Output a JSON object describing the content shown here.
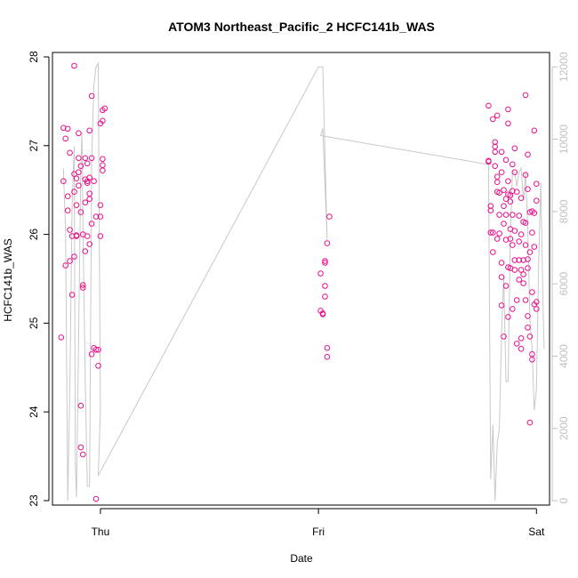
{
  "chart_data": {
    "type": "scatter",
    "title": "ATOM3 Northeast_Pacific_2 HCFC141b_WAS",
    "xlabel": "Date",
    "ylabel": "HCFC141b_WAS",
    "xlim": [
      -0.22,
      2.06
    ],
    "ylim": [
      22.95,
      28.05
    ],
    "y2lim": [
      -120,
      12400
    ],
    "x_ticks": [
      {
        "v": 0,
        "label": "Thu"
      },
      {
        "v": 1,
        "label": "Fri"
      },
      {
        "v": 2,
        "label": "Sat"
      }
    ],
    "y_ticks": [
      23,
      24,
      25,
      26,
      27,
      28
    ],
    "y2_ticks": [
      0,
      2000,
      4000,
      6000,
      8000,
      10000,
      12000
    ],
    "colors": {
      "points": "#e8128c",
      "altitude_line": "#c8c8c8",
      "axes": "#000000",
      "right_axis": "#c0c0c0"
    },
    "series": [
      {
        "kind": "points",
        "values": [
          [
            -0.18,
            24.84
          ],
          [
            -0.17,
            27.2
          ],
          [
            -0.17,
            26.6
          ],
          [
            -0.16,
            27.08
          ],
          [
            -0.16,
            25.65
          ],
          [
            -0.15,
            27.19
          ],
          [
            -0.15,
            26.43
          ],
          [
            -0.15,
            26.27
          ],
          [
            -0.14,
            26.92
          ],
          [
            -0.14,
            26.05
          ],
          [
            -0.14,
            25.7
          ],
          [
            -0.13,
            25.98
          ],
          [
            -0.13,
            25.32
          ],
          [
            -0.12,
            26.48
          ],
          [
            -0.12,
            26.68
          ],
          [
            -0.12,
            25.75
          ],
          [
            -0.11,
            25.99
          ],
          [
            -0.11,
            26.63
          ],
          [
            -0.11,
            26.33
          ],
          [
            -0.11,
            25.98
          ],
          [
            -0.1,
            27.14
          ],
          [
            -0.1,
            26.7
          ],
          [
            -0.1,
            26.55
          ],
          [
            -0.1,
            26.86
          ],
          [
            -0.09,
            26.77
          ],
          [
            -0.09,
            26.25
          ],
          [
            -0.09,
            24.07
          ],
          [
            -0.09,
            23.6
          ],
          [
            -0.08,
            23.52
          ],
          [
            -0.08,
            25.43
          ],
          [
            -0.08,
            25.4
          ],
          [
            -0.08,
            26.0
          ],
          [
            -0.07,
            26.62
          ],
          [
            -0.07,
            26.36
          ],
          [
            -0.07,
            25.81
          ],
          [
            -0.07,
            26.86
          ],
          [
            -0.06,
            26.58
          ],
          [
            -0.06,
            26.8
          ],
          [
            -0.06,
            26.6
          ],
          [
            -0.06,
            25.98
          ],
          [
            -0.05,
            26.4
          ],
          [
            -0.05,
            27.17
          ],
          [
            -0.05,
            26.64
          ],
          [
            -0.05,
            26.46
          ],
          [
            -0.05,
            25.89
          ],
          [
            -0.04,
            26.86
          ],
          [
            -0.04,
            27.56
          ],
          [
            -0.04,
            26.12
          ],
          [
            -0.04,
            24.65
          ],
          [
            -0.03,
            24.72
          ],
          [
            -0.03,
            26.6
          ],
          [
            -0.02,
            24.7
          ],
          [
            -0.02,
            26.2
          ],
          [
            -0.02,
            23.02
          ],
          [
            -0.01,
            24.7
          ],
          [
            -0.01,
            24.52
          ],
          [
            0.0,
            26.33
          ],
          [
            0.0,
            25.98
          ],
          [
            0.0,
            27.25
          ],
          [
            0.0,
            26.2
          ],
          [
            0.01,
            26.85
          ],
          [
            0.01,
            26.78
          ],
          [
            0.01,
            26.72
          ],
          [
            0.01,
            27.28
          ],
          [
            0.01,
            27.4
          ],
          [
            0.02,
            27.42
          ],
          [
            -0.12,
            27.9
          ],
          [
            1.01,
            25.56
          ],
          [
            1.01,
            25.14
          ],
          [
            1.02,
            25.1
          ],
          [
            1.02,
            25.11
          ],
          [
            1.03,
            25.7
          ],
          [
            1.03,
            25.68
          ],
          [
            1.03,
            25.42
          ],
          [
            1.03,
            25.3
          ],
          [
            1.04,
            24.62
          ],
          [
            1.04,
            24.72
          ],
          [
            1.04,
            25.9
          ],
          [
            1.05,
            26.2
          ],
          [
            1.78,
            27.45
          ],
          [
            1.78,
            26.83
          ],
          [
            1.78,
            26.82
          ],
          [
            1.79,
            26.02
          ],
          [
            1.79,
            26.32
          ],
          [
            1.79,
            26.27
          ],
          [
            1.8,
            25.8
          ],
          [
            1.8,
            26.02
          ],
          [
            1.8,
            27.3
          ],
          [
            1.81,
            26.77
          ],
          [
            1.81,
            26.99
          ],
          [
            1.81,
            26.93
          ],
          [
            1.81,
            27.04
          ],
          [
            1.82,
            26.65
          ],
          [
            1.82,
            26.59
          ],
          [
            1.82,
            26.48
          ],
          [
            1.82,
            25.95
          ],
          [
            1.82,
            27.34
          ],
          [
            1.83,
            26.22
          ],
          [
            1.83,
            26.47
          ],
          [
            1.83,
            26.01
          ],
          [
            1.84,
            26.7
          ],
          [
            1.84,
            26.93
          ],
          [
            1.84,
            25.68
          ],
          [
            1.84,
            25.52
          ],
          [
            1.84,
            25.2
          ],
          [
            1.85,
            26.12
          ],
          [
            1.85,
            26.32
          ],
          [
            1.85,
            26.5
          ],
          [
            1.85,
            24.85
          ],
          [
            1.86,
            26.22
          ],
          [
            1.86,
            26.4
          ],
          [
            1.86,
            26.84
          ],
          [
            1.86,
            25.94
          ],
          [
            1.86,
            25.42
          ],
          [
            1.87,
            27.25
          ],
          [
            1.87,
            27.41
          ],
          [
            1.87,
            26.6
          ],
          [
            1.87,
            26.45
          ],
          [
            1.87,
            25.63
          ],
          [
            1.87,
            25.07
          ],
          [
            1.88,
            26.37
          ],
          [
            1.88,
            26.44
          ],
          [
            1.88,
            25.95
          ],
          [
            1.88,
            26.06
          ],
          [
            1.88,
            25.62
          ],
          [
            1.89,
            25.16
          ],
          [
            1.89,
            26.79
          ],
          [
            1.89,
            26.49
          ],
          [
            1.89,
            26.22
          ],
          [
            1.89,
            25.88
          ],
          [
            1.9,
            26.97
          ],
          [
            1.9,
            26.7
          ],
          [
            1.9,
            25.6
          ],
          [
            1.9,
            25.71
          ],
          [
            1.9,
            26.04
          ],
          [
            1.91,
            25.26
          ],
          [
            1.91,
            26.48
          ],
          [
            1.91,
            24.77
          ],
          [
            1.92,
            26.21
          ],
          [
            1.92,
            25.49
          ],
          [
            1.92,
            25.92
          ],
          [
            1.92,
            25.71
          ],
          [
            1.93,
            24.83
          ],
          [
            1.93,
            24.71
          ],
          [
            1.93,
            26.0
          ],
          [
            1.93,
            25.6
          ],
          [
            1.93,
            26.41
          ],
          [
            1.94,
            25.71
          ],
          [
            1.94,
            25.55
          ],
          [
            1.94,
            26.14
          ],
          [
            1.94,
            25.45
          ],
          [
            1.95,
            26.13
          ],
          [
            1.95,
            27.57
          ],
          [
            1.95,
            25.26
          ],
          [
            1.95,
            26.67
          ],
          [
            1.95,
            25.88
          ],
          [
            1.96,
            26.51
          ],
          [
            1.96,
            25.72
          ],
          [
            1.96,
            26.9
          ],
          [
            1.96,
            25.62
          ],
          [
            1.96,
            25.08
          ],
          [
            1.96,
            24.95
          ],
          [
            1.97,
            24.85
          ],
          [
            1.97,
            25.8
          ],
          [
            1.97,
            23.88
          ],
          [
            1.97,
            26.25
          ],
          [
            1.98,
            24.65
          ],
          [
            1.98,
            24.59
          ],
          [
            1.98,
            26.26
          ],
          [
            1.98,
            26.02
          ],
          [
            1.98,
            25.35
          ],
          [
            1.99,
            26.24
          ],
          [
            1.99,
            25.86
          ],
          [
            1.99,
            27.17
          ],
          [
            1.99,
            25.21
          ],
          [
            2.0,
            25.16
          ],
          [
            2.0,
            26.57
          ],
          [
            2.0,
            26.38
          ],
          [
            2.0,
            25.24
          ]
        ]
      },
      {
        "kind": "altitude-line",
        "axis": "right",
        "values": [
          [
            -0.17,
            9200
          ],
          [
            -0.16,
            7500
          ],
          [
            -0.15,
            0
          ],
          [
            -0.14,
            3200
          ],
          [
            -0.13,
            8200
          ],
          [
            -0.12,
            9800
          ],
          [
            -0.115,
            1000
          ],
          [
            -0.11,
            100
          ],
          [
            -0.1,
            4500
          ],
          [
            -0.09,
            9200
          ],
          [
            -0.085,
            10200
          ],
          [
            -0.08,
            7600
          ],
          [
            -0.07,
            3400
          ],
          [
            -0.06,
            400
          ],
          [
            -0.05,
            400
          ],
          [
            -0.04,
            9400
          ],
          [
            -0.03,
            11500
          ],
          [
            -0.02,
            12000
          ],
          [
            -0.01,
            12100
          ],
          [
            0.0,
            2500
          ],
          [
            -0.01,
            700
          ],
          [
            1.0,
            12000
          ],
          [
            1.02,
            12000
          ],
          [
            1.04,
            7200
          ],
          [
            1.02,
            10300
          ],
          [
            1.01,
            10100
          ],
          [
            1.78,
            9300
          ],
          [
            1.79,
            600
          ],
          [
            1.8,
            2100
          ],
          [
            1.81,
            0
          ],
          [
            1.82,
            1600
          ],
          [
            1.83,
            2000
          ],
          [
            1.84,
            4700
          ],
          [
            1.85,
            6200
          ],
          [
            1.86,
            3300
          ],
          [
            1.87,
            3300
          ],
          [
            1.88,
            7300
          ],
          [
            1.89,
            9100
          ],
          [
            1.9,
            9100
          ],
          [
            1.91,
            8700
          ],
          [
            1.92,
            9100
          ],
          [
            1.93,
            9200
          ],
          [
            1.94,
            8300
          ],
          [
            1.95,
            9100
          ],
          [
            1.96,
            7500
          ],
          [
            1.97,
            5000
          ],
          [
            1.98,
            4200
          ],
          [
            1.99,
            2500
          ],
          [
            2.0,
            3100
          ],
          [
            2.01,
            6500
          ],
          [
            2.02,
            8800
          ],
          [
            2.03,
            5500
          ],
          [
            2.035,
            4200
          ]
        ]
      }
    ]
  }
}
